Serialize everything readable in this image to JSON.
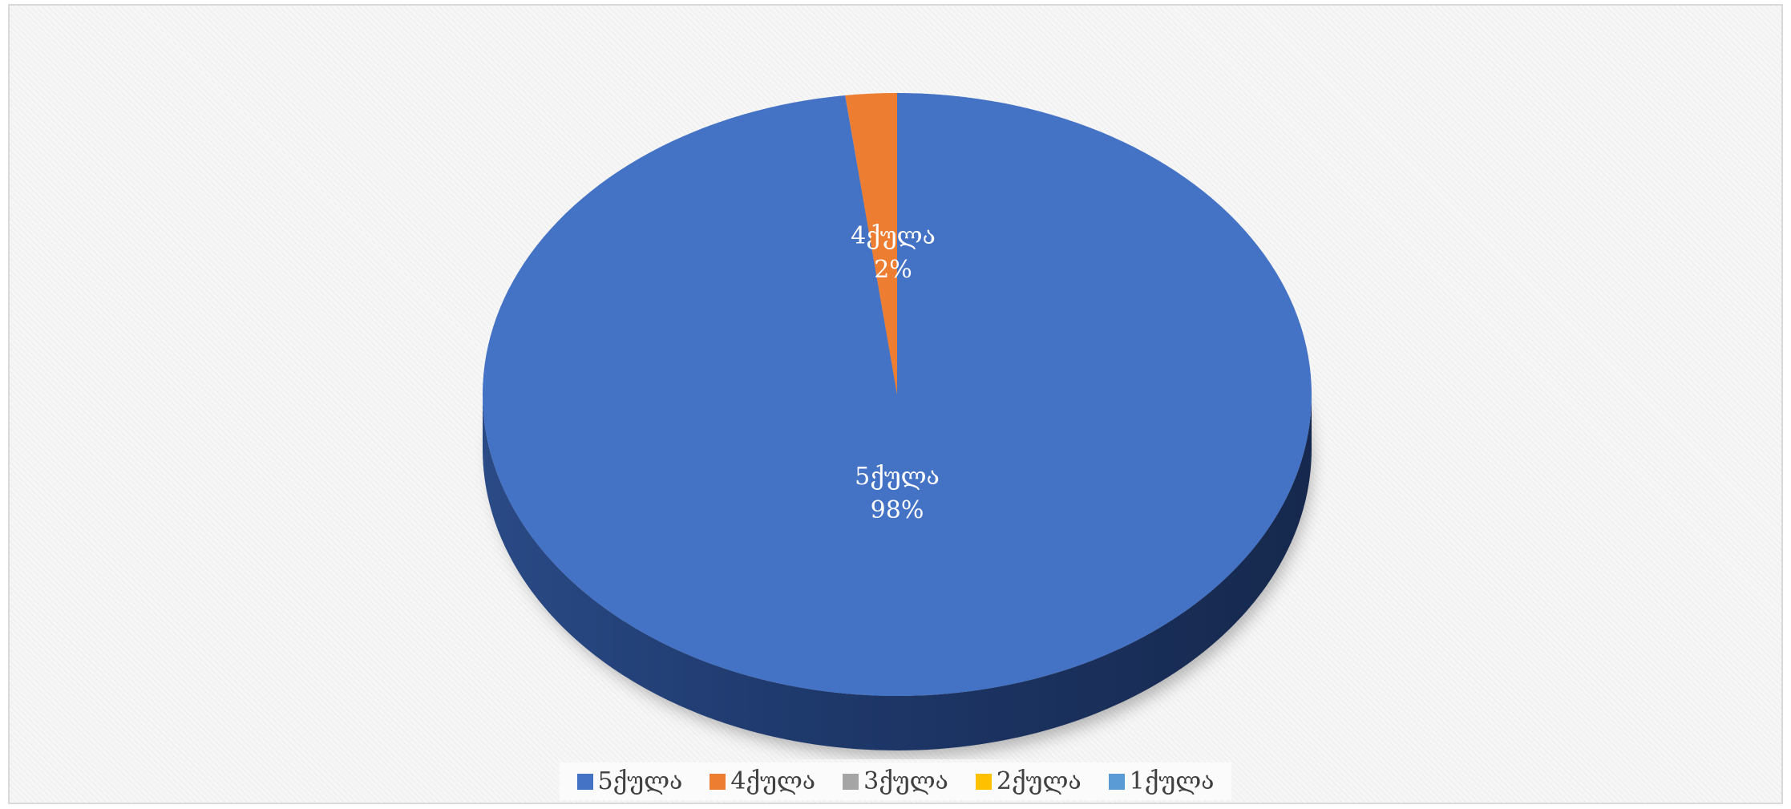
{
  "chart_data": {
    "type": "pie",
    "title": "",
    "categories": [
      "5ქულა",
      "4ქულა",
      "3ქულა",
      "2ქულა",
      "1ქულა"
    ],
    "values": [
      98,
      2,
      0,
      0,
      0
    ],
    "value_labels": [
      "98%",
      "2%",
      "",
      "",
      ""
    ],
    "colors": [
      "#4472c4",
      "#ed7d31",
      "#a5a5a5",
      "#ffc000",
      "#5b9bd5"
    ],
    "legend_position": "bottom",
    "style": "3d"
  }
}
